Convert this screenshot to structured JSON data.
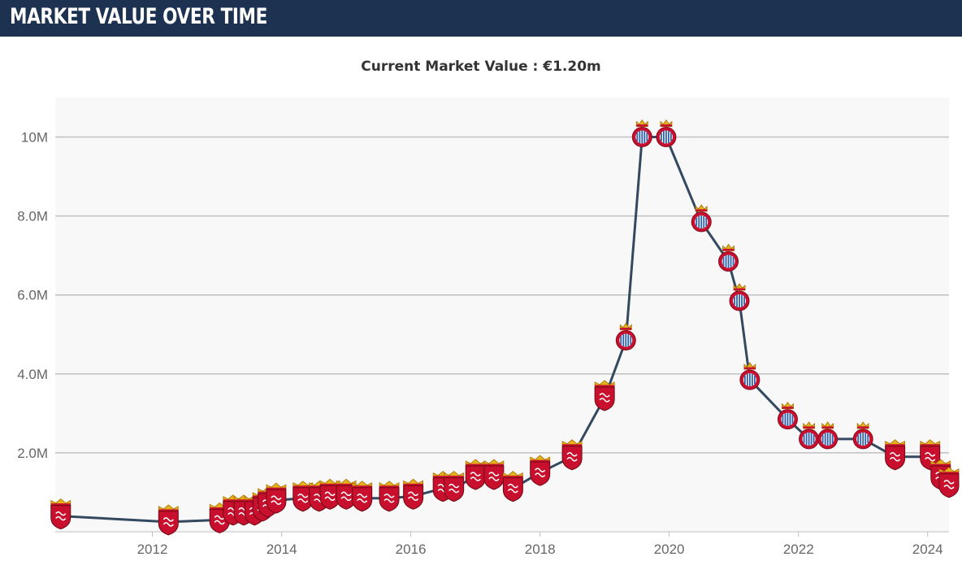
{
  "header": {
    "title": "MARKET VALUE OVER TIME"
  },
  "summary": {
    "current_market_value": "Current Market Value : €1.20m"
  },
  "colors": {
    "header_bg": "#1d3150",
    "line": "#34485f",
    "plot_bg": "#f8f8f8",
    "gridline": "#c0c0c0",
    "club_badge_red": "#c8102e",
    "club_badge_blue": "#2f5fa8",
    "crown_gold": "#e3b21c"
  },
  "chart_data": {
    "type": "line",
    "title": "",
    "xlabel": "",
    "ylabel": "",
    "x_ticks": [
      "2012",
      "2014",
      "2016",
      "2018",
      "2020",
      "2022",
      "2024"
    ],
    "y_ticks": [
      "2.0M",
      "4.0M",
      "6.0M",
      "8.0M",
      "10M"
    ],
    "xlim": [
      "2010-07-01",
      "2024-05-01"
    ],
    "ylim": [
      0,
      11000000
    ],
    "grid": true,
    "marker_icons": [
      "club-a-badge",
      "club-b-badge"
    ],
    "series": [
      {
        "points": [
          {
            "x": "2010-08-01",
            "y": 400000,
            "club": "club-a-badge"
          },
          {
            "x": "2012-04-01",
            "y": 250000,
            "club": "club-a-badge"
          },
          {
            "x": "2013-01-15",
            "y": 300000,
            "club": "club-a-badge"
          },
          {
            "x": "2013-04-01",
            "y": 500000,
            "club": "club-a-badge"
          },
          {
            "x": "2013-06-01",
            "y": 500000,
            "club": "club-a-badge"
          },
          {
            "x": "2013-08-01",
            "y": 500000,
            "club": "club-a-badge"
          },
          {
            "x": "2013-09-15",
            "y": 600000,
            "club": "club-a-badge"
          },
          {
            "x": "2013-10-15",
            "y": 700000,
            "club": "club-a-badge"
          },
          {
            "x": "2013-12-01",
            "y": 800000,
            "club": "club-a-badge"
          },
          {
            "x": "2014-05-01",
            "y": 850000,
            "club": "club-a-badge"
          },
          {
            "x": "2014-08-01",
            "y": 850000,
            "club": "club-a-badge"
          },
          {
            "x": "2014-10-01",
            "y": 900000,
            "club": "club-a-badge"
          },
          {
            "x": "2015-01-01",
            "y": 900000,
            "club": "club-a-badge"
          },
          {
            "x": "2015-04-01",
            "y": 850000,
            "club": "club-a-badge"
          },
          {
            "x": "2015-09-01",
            "y": 850000,
            "club": "club-a-badge"
          },
          {
            "x": "2016-01-15",
            "y": 900000,
            "club": "club-a-badge"
          },
          {
            "x": "2016-07-01",
            "y": 1100000,
            "club": "club-a-badge"
          },
          {
            "x": "2016-09-01",
            "y": 1100000,
            "club": "club-a-badge"
          },
          {
            "x": "2017-01-01",
            "y": 1400000,
            "club": "club-a-badge"
          },
          {
            "x": "2017-04-15",
            "y": 1400000,
            "club": "club-a-badge"
          },
          {
            "x": "2017-08-01",
            "y": 1100000,
            "club": "club-a-badge"
          },
          {
            "x": "2018-01-01",
            "y": 1500000,
            "club": "club-a-badge"
          },
          {
            "x": "2018-07-01",
            "y": 1900000,
            "club": "club-a-badge"
          },
          {
            "x": "2019-01-01",
            "y": 3400000,
            "club": "club-a-badge"
          },
          {
            "x": "2019-05-01",
            "y": 4850000,
            "club": "club-b-badge"
          },
          {
            "x": "2019-08-01",
            "y": 10000000,
            "club": "club-b-badge"
          },
          {
            "x": "2019-12-15",
            "y": 10000000,
            "club": "club-b-badge"
          },
          {
            "x": "2020-07-01",
            "y": 7850000,
            "club": "club-b-badge"
          },
          {
            "x": "2020-12-01",
            "y": 6850000,
            "club": "club-b-badge"
          },
          {
            "x": "2021-02-01",
            "y": 5850000,
            "club": "club-b-badge"
          },
          {
            "x": "2021-04-01",
            "y": 3850000,
            "club": "club-b-badge"
          },
          {
            "x": "2021-11-01",
            "y": 2850000,
            "club": "club-b-badge"
          },
          {
            "x": "2022-03-01",
            "y": 2350000,
            "club": "club-b-badge"
          },
          {
            "x": "2022-06-15",
            "y": 2350000,
            "club": "club-b-badge"
          },
          {
            "x": "2023-01-01",
            "y": 2350000,
            "club": "club-b-badge"
          },
          {
            "x": "2023-07-01",
            "y": 1900000,
            "club": "club-a-badge"
          },
          {
            "x": "2024-01-15",
            "y": 1900000,
            "club": "club-a-badge"
          },
          {
            "x": "2024-03-15",
            "y": 1400000,
            "club": "club-a-badge"
          },
          {
            "x": "2024-05-01",
            "y": 1200000,
            "club": "club-a-badge"
          }
        ]
      }
    ]
  }
}
